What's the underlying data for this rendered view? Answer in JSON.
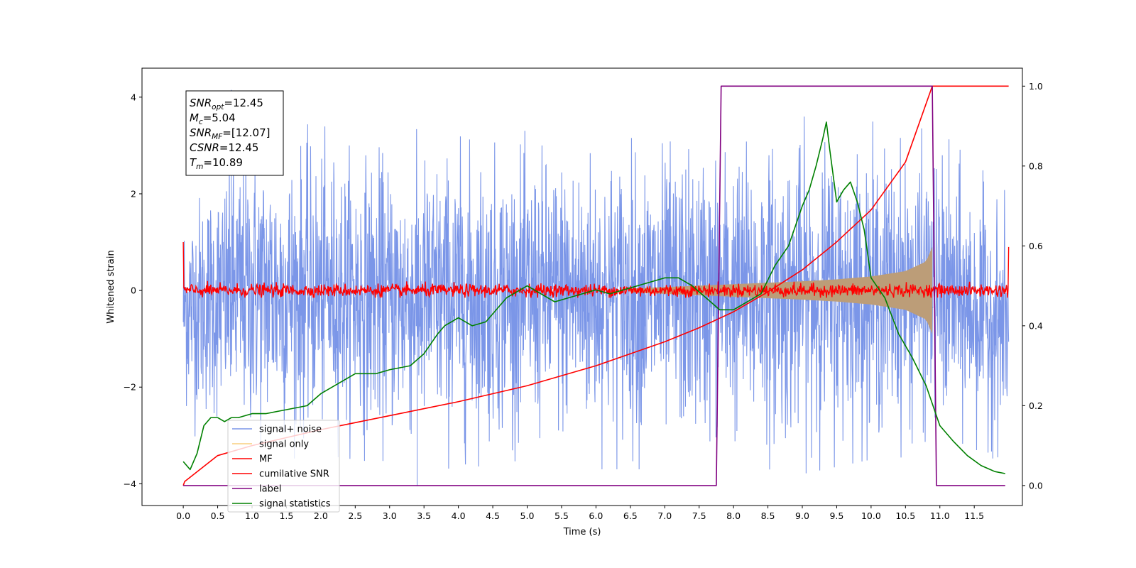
{
  "chart_data": {
    "type": "line",
    "xlabel": "Time (s)",
    "ylabel_left": "Whitened strain",
    "ylabel_right": "",
    "xlim": [
      -0.6,
      12.2
    ],
    "ylim_left": [
      -4.45,
      4.6
    ],
    "ylim_right": [
      -0.05,
      1.045
    ],
    "x_ticks": [
      0.0,
      0.5,
      1.0,
      1.5,
      2.0,
      2.5,
      3.0,
      3.5,
      4.0,
      4.5,
      5.0,
      5.5,
      6.0,
      6.5,
      7.0,
      7.5,
      8.0,
      8.5,
      9.0,
      9.5,
      10.0,
      10.5,
      11.0,
      11.5
    ],
    "x_tick_labels": [
      "0.0",
      "0.5",
      "1.0",
      "1.5",
      "2.0",
      "2.5",
      "3.0",
      "3.5",
      "4.0",
      "4.5",
      "5.0",
      "5.5",
      "6.0",
      "6.5",
      "7.0",
      "7.5",
      "8.0",
      "8.5",
      "9.0",
      "9.5",
      "10.0",
      "10.5",
      "11.0",
      "11.5"
    ],
    "y_ticks_left": [
      -4,
      -2,
      0,
      2,
      4
    ],
    "y_tick_labels_left": [
      "−4",
      "−2",
      "0",
      "2",
      "4"
    ],
    "y_ticks_right": [
      0.0,
      0.2,
      0.4,
      0.6,
      0.8,
      1.0
    ],
    "y_tick_labels_right": [
      "0.0",
      "0.2",
      "0.4",
      "0.6",
      "0.8",
      "1.0"
    ],
    "grid": false,
    "legend_position": "lower-left",
    "annotation_box": {
      "position": "top-left",
      "lines": [
        {
          "base": "SNR",
          "sub": "opt",
          "value": "=12.45"
        },
        {
          "base": "M",
          "sub": "c",
          "value": "=5.04"
        },
        {
          "base": "SNR",
          "sub": "MF",
          "value": "=[12.07]"
        },
        {
          "base": "CSNR",
          "sub": "",
          "value": "=12.45"
        },
        {
          "base": "T",
          "sub": "m",
          "value": "=10.89"
        }
      ]
    },
    "series": [
      {
        "name": "signal+ noise",
        "axis": "left",
        "color": "#7b96e8",
        "x_range": [
          0.0,
          12.0
        ],
        "upper_envelope": {
          "x": [
            0.0,
            1.0,
            2.0,
            3.0,
            4.0,
            5.0,
            6.0,
            7.0,
            8.0,
            9.0,
            10.0,
            11.0,
            12.0
          ],
          "y": [
            2.2,
            3.6,
            3.4,
            3.3,
            3.4,
            3.3,
            3.5,
            3.4,
            3.5,
            3.6,
            3.5,
            3.3,
            2.0
          ]
        },
        "lower_envelope": {
          "x": [
            0.0,
            1.0,
            2.0,
            3.0,
            4.0,
            5.0,
            6.0,
            7.0,
            8.0,
            9.0,
            10.0,
            11.0,
            12.0
          ],
          "y": [
            -2.9,
            -3.6,
            -3.4,
            -3.6,
            -3.7,
            -3.5,
            -3.7,
            -3.7,
            -3.6,
            -3.8,
            -3.5,
            -3.4,
            -3.5
          ]
        },
        "extremes": {
          "max": 4.15,
          "min": -4.05
        }
      },
      {
        "name": "signal only",
        "axis": "left",
        "color": "#f9cf7e",
        "envelope_amplitude": {
          "x": [
            6.5,
            7.0,
            7.5,
            8.0,
            8.5,
            9.0,
            9.5,
            10.0,
            10.5,
            10.8,
            10.89
          ],
          "y": [
            0.04,
            0.07,
            0.1,
            0.13,
            0.16,
            0.19,
            0.23,
            0.29,
            0.4,
            0.6,
            0.9
          ]
        }
      },
      {
        "name": "MF",
        "axis": "left",
        "color": "#ff0000",
        "baseline": 0.0,
        "noise_amplitude": 0.12,
        "edge_values": {
          "start": 1.0,
          "end": 0.9
        }
      },
      {
        "name": "cumilative SNR",
        "axis": "right",
        "color": "#ff0000",
        "x": [
          0.0,
          0.02,
          0.5,
          1.0,
          2.0,
          3.0,
          4.0,
          5.0,
          6.0,
          7.0,
          7.5,
          8.0,
          8.5,
          9.0,
          9.5,
          10.0,
          10.5,
          10.89,
          12.0
        ],
        "y": [
          0.0,
          0.01,
          0.075,
          0.1,
          0.14,
          0.175,
          0.21,
          0.25,
          0.3,
          0.36,
          0.395,
          0.435,
          0.485,
          0.54,
          0.61,
          0.69,
          0.81,
          1.0,
          1.0
        ]
      },
      {
        "name": "label",
        "axis": "right",
        "color": "#800080",
        "x": [
          0.0,
          7.75,
          7.82,
          10.89,
          10.95,
          11.0,
          11.95
        ],
        "y": [
          0.0,
          0.0,
          1.0,
          1.0,
          0.0,
          0.0,
          0.0
        ]
      },
      {
        "name": "signal statistics",
        "axis": "right",
        "color": "#008000",
        "x": [
          0.0,
          0.1,
          0.2,
          0.3,
          0.4,
          0.5,
          0.6,
          0.7,
          0.8,
          1.0,
          1.2,
          1.5,
          1.8,
          2.0,
          2.2,
          2.5,
          2.8,
          3.0,
          3.3,
          3.5,
          3.7,
          3.8,
          4.0,
          4.2,
          4.4,
          4.6,
          4.7,
          4.8,
          5.0,
          5.2,
          5.4,
          5.6,
          5.8,
          6.0,
          6.2,
          6.4,
          6.6,
          6.8,
          7.0,
          7.2,
          7.4,
          7.6,
          7.8,
          8.0,
          8.2,
          8.4,
          8.6,
          8.8,
          9.0,
          9.1,
          9.2,
          9.3,
          9.35,
          9.4,
          9.5,
          9.6,
          9.7,
          9.8,
          9.9,
          10.0,
          10.2,
          10.4,
          10.6,
          10.8,
          11.0,
          11.2,
          11.4,
          11.6,
          11.8,
          11.95
        ],
        "y": [
          0.06,
          0.04,
          0.08,
          0.15,
          0.17,
          0.17,
          0.16,
          0.17,
          0.17,
          0.18,
          0.18,
          0.19,
          0.2,
          0.23,
          0.25,
          0.28,
          0.28,
          0.29,
          0.3,
          0.33,
          0.38,
          0.4,
          0.42,
          0.4,
          0.41,
          0.45,
          0.47,
          0.48,
          0.5,
          0.48,
          0.46,
          0.47,
          0.48,
          0.49,
          0.48,
          0.49,
          0.5,
          0.51,
          0.52,
          0.52,
          0.5,
          0.47,
          0.44,
          0.44,
          0.46,
          0.48,
          0.55,
          0.6,
          0.7,
          0.74,
          0.8,
          0.87,
          0.91,
          0.84,
          0.71,
          0.74,
          0.76,
          0.71,
          0.64,
          0.52,
          0.47,
          0.38,
          0.32,
          0.25,
          0.15,
          0.11,
          0.075,
          0.05,
          0.035,
          0.03
        ]
      }
    ]
  }
}
